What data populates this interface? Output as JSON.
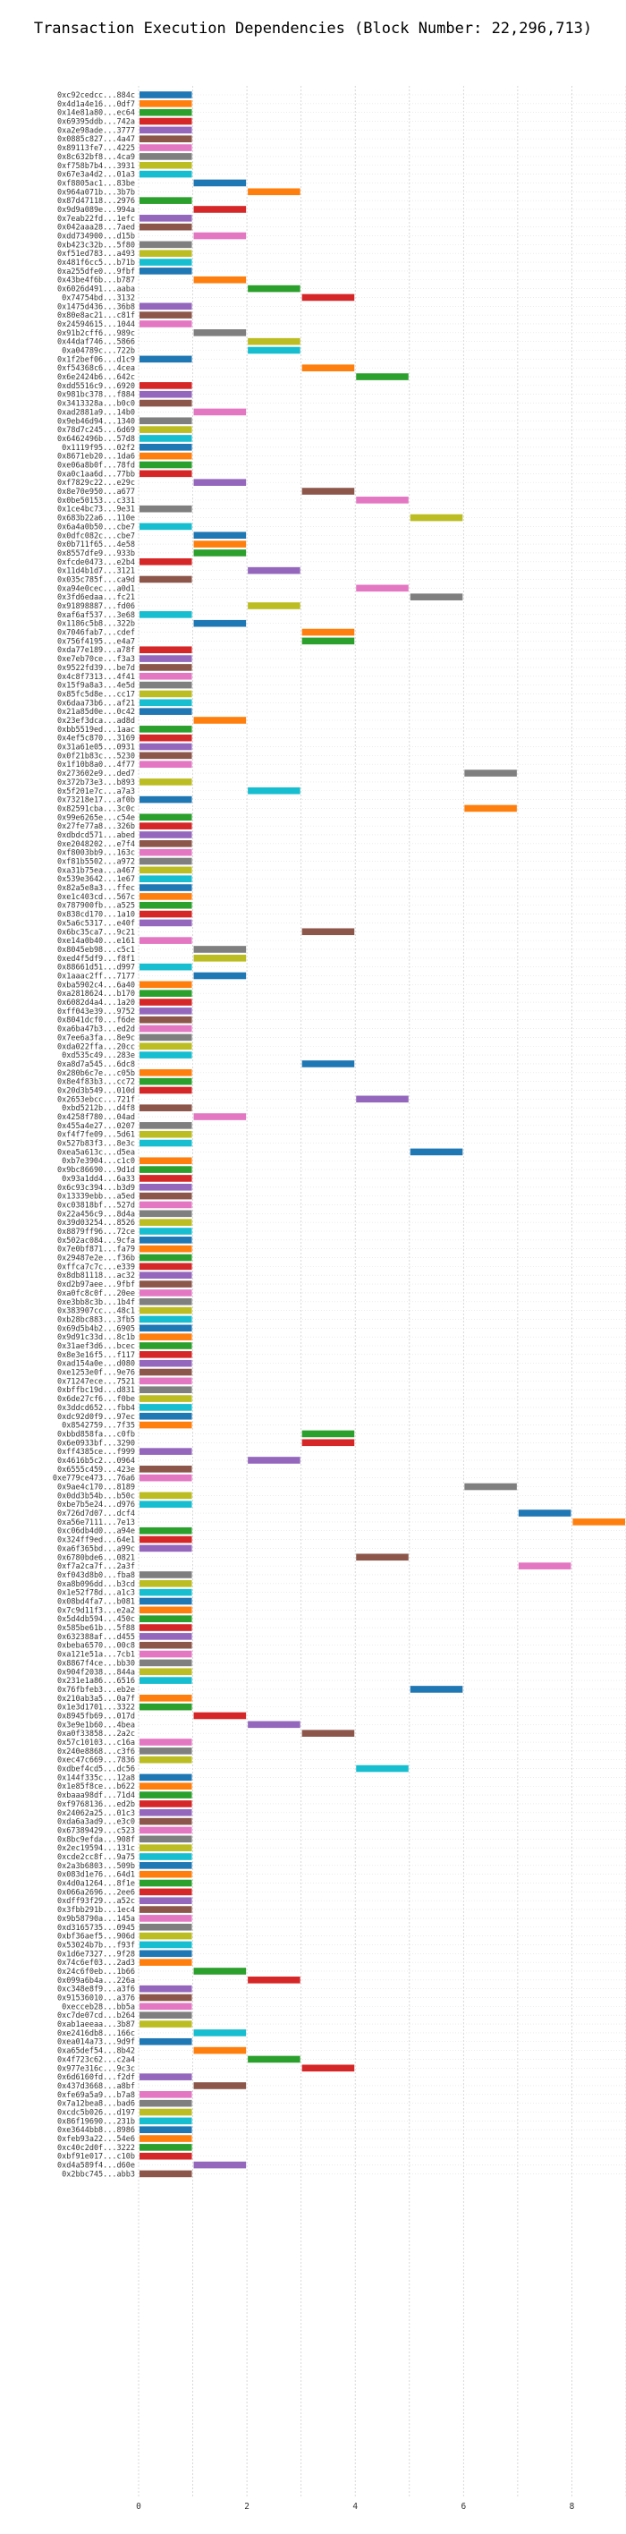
{
  "chart_data": {
    "type": "bar",
    "orientation": "horizontal",
    "title": "Transaction Execution Dependencies (Block Number: 22,296,713)",
    "xlabel": "",
    "ylabel": "",
    "xlim": [
      0,
      9
    ],
    "xticks": [
      0,
      2,
      4,
      6,
      8
    ],
    "grid": "vertical dotted",
    "colors": [
      "#1f77b4",
      "#ff7f0e",
      "#2ca02c",
      "#d62728",
      "#9467bd",
      "#8c564b",
      "#e377c2",
      "#7f7f7f",
      "#bcbd22",
      "#17becf"
    ],
    "transactions": [
      [
        "0xc92cedcc...884c",
        0,
        0
      ],
      [
        "0x4d1a4e16...0df7",
        0,
        1
      ],
      [
        "0x14e81a80...ec64",
        0,
        2
      ],
      [
        "0x69395ddb...742a",
        0,
        3
      ],
      [
        "0xa2e98ade...3777",
        0,
        4
      ],
      [
        "0x0885c827...4a47",
        0,
        5
      ],
      [
        "0x89113fe7...4225",
        0,
        6
      ],
      [
        "0x8c632bf8...4ca9",
        0,
        7
      ],
      [
        "0xf758b7b4...3931",
        0,
        8
      ],
      [
        "0x67e3a4d2...01a3",
        0,
        9
      ],
      [
        "0xf8805ac1...83be",
        1,
        0
      ],
      [
        "0x964a071b...3b7b",
        2,
        1
      ],
      [
        "0x87d47118...2976",
        0,
        2
      ],
      [
        "0x9d9a089e...994a",
        1,
        3
      ],
      [
        "0x7eab22fd...1efc",
        0,
        4
      ],
      [
        "0x042aaa28...7aed",
        0,
        5
      ],
      [
        "0xdd734900...d15b",
        1,
        6
      ],
      [
        "0xb423c32b...5f80",
        0,
        7
      ],
      [
        "0xf51ed783...a493",
        0,
        8
      ],
      [
        "0x481f6cc5...b71b",
        0,
        9
      ],
      [
        "0xa255dfe0...9fbf",
        0,
        0
      ],
      [
        "0x43be4f6b...b787",
        1,
        1
      ],
      [
        "0x6026d491...aaba",
        2,
        2
      ],
      [
        "0x74754bd...3132",
        3,
        3
      ],
      [
        "0x1475d436...36b8",
        0,
        4
      ],
      [
        "0x80e8ac21...c81f",
        0,
        5
      ],
      [
        "0x24594615...1044",
        0,
        6
      ],
      [
        "0x91b2cff6...989c",
        1,
        7
      ],
      [
        "0x44daf746...5866",
        2,
        8
      ],
      [
        "0xa04789c...722b",
        2,
        9
      ],
      [
        "0x1f2bef06...d1c9",
        0,
        0
      ],
      [
        "0xf54368c6...4cea",
        3,
        1
      ],
      [
        "0x6e2424b6...642c",
        4,
        2
      ],
      [
        "0xdd5516c9...6920",
        0,
        3
      ],
      [
        "0x981bc378...f884",
        0,
        4
      ],
      [
        "0x3413328a...b0c0",
        0,
        5
      ],
      [
        "0xad2881a9...14b0",
        1,
        6
      ],
      [
        "0x9eb46d94...1340",
        0,
        7
      ],
      [
        "0x78d7c245...6d69",
        0,
        8
      ],
      [
        "0x6462496b...57d8",
        0,
        9
      ],
      [
        "0x1119f95...02f2",
        0,
        0
      ],
      [
        "0x8671eb20...1da6",
        0,
        1
      ],
      [
        "0xe06a8b0f...78fd",
        0,
        2
      ],
      [
        "0xa0c1aa6d...77bb",
        0,
        3
      ],
      [
        "0xf7829c22...e29c",
        1,
        4
      ],
      [
        "0x8e70e950...a677",
        3,
        5
      ],
      [
        "0x0be50153...c331",
        4,
        6
      ],
      [
        "0x1ce4bc73...9e31",
        0,
        7
      ],
      [
        "0x683b22a6...110e",
        5,
        8
      ],
      [
        "0x6a4a0b50...cbe7",
        0,
        9
      ],
      [
        "0x0dfc082c...cbe7",
        1,
        0
      ],
      [
        "0x0b711f65...4e58",
        1,
        1
      ],
      [
        "0x8557dfe9...933b",
        1,
        2
      ],
      [
        "0xfcde0473...e2b4",
        0,
        3
      ],
      [
        "0x11d4b1d7...3121",
        2,
        4
      ],
      [
        "0x035c785f...ca9d",
        0,
        5
      ],
      [
        "0xa94e0cec...a0d1",
        4,
        6
      ],
      [
        "0x3fd6edaa...fc21",
        5,
        7
      ],
      [
        "0x91898887...fd06",
        2,
        8
      ],
      [
        "0xaf6af537...3e68",
        0,
        9
      ],
      [
        "0x1186c5b8...322b",
        1,
        0
      ],
      [
        "0x7046fab7...cdef",
        3,
        1
      ],
      [
        "0x756f4195...e4a7",
        3,
        2
      ],
      [
        "0xda77e189...a78f",
        0,
        3
      ],
      [
        "0xe7eb70ce...f3a3",
        0,
        4
      ],
      [
        "0x9522fd39...be7d",
        0,
        5
      ],
      [
        "0x4c8f7313...4f41",
        0,
        6
      ],
      [
        "0x15f9a8a3...4e5d",
        0,
        7
      ],
      [
        "0x85fc5d8e...cc17",
        0,
        8
      ],
      [
        "0x6daa73b6...af21",
        0,
        9
      ],
      [
        "0x21a85d0e...0c42",
        0,
        0
      ],
      [
        "0x23ef3dca...ad8d",
        1,
        1
      ],
      [
        "0xbb5519ed...1aac",
        0,
        2
      ],
      [
        "0x4ef5c870...3169",
        0,
        3
      ],
      [
        "0x31a61e05...0931",
        0,
        4
      ],
      [
        "0x0f21b83c...5230",
        0,
        5
      ],
      [
        "0x1f10b8a0...4f77",
        0,
        6
      ],
      [
        "0x273602e9...ded7",
        6,
        7
      ],
      [
        "0x372b73e3...b893",
        0,
        8
      ],
      [
        "0x5f201e7c...a7a3",
        2,
        9
      ],
      [
        "0x73218e17...af0b",
        0,
        0
      ],
      [
        "0x82591cba...3c0c",
        6,
        1
      ],
      [
        "0x99e6265e...c54e",
        0,
        2
      ],
      [
        "0x27fe77a8...326b",
        0,
        3
      ],
      [
        "0xdbdcd571...abed",
        0,
        4
      ],
      [
        "0xe2048202...e7f4",
        0,
        5
      ],
      [
        "0xf8003bb9...163c",
        0,
        6
      ],
      [
        "0xf81b5502...a972",
        0,
        7
      ],
      [
        "0xa31b75ea...a467",
        0,
        8
      ],
      [
        "0x539e3642...1e67",
        0,
        9
      ],
      [
        "0x82a5e8a3...ffec",
        0,
        0
      ],
      [
        "0xe1c403cd...567c",
        0,
        1
      ],
      [
        "0x787900fb...a525",
        0,
        2
      ],
      [
        "0x838cd170...1a10",
        0,
        3
      ],
      [
        "0x5a6c5317...e40f",
        0,
        4
      ],
      [
        "0x6bc35ca7...9c21",
        3,
        5
      ],
      [
        "0xe14a0b40...e161",
        0,
        6
      ],
      [
        "0x8045eb98...c5c1",
        1,
        7
      ],
      [
        "0xed4f5df9...f8f1",
        1,
        8
      ],
      [
        "0x88661d51...d997",
        0,
        9
      ],
      [
        "0x1aaac2ff...7177",
        1,
        0
      ],
      [
        "0xba5902c4...6a40",
        0,
        1
      ],
      [
        "0xa2818624...b170",
        0,
        2
      ],
      [
        "0x6082d4a4...1a20",
        0,
        3
      ],
      [
        "0xff043e39...9752",
        0,
        4
      ],
      [
        "0x8041dcf0...f6de",
        0,
        5
      ],
      [
        "0xa6ba47b3...ed2d",
        0,
        6
      ],
      [
        "0x7ee6a3fa...8e9c",
        0,
        7
      ],
      [
        "0xda022ffa...20cc",
        0,
        8
      ],
      [
        "0xd535c49...283e",
        0,
        9
      ],
      [
        "0xa8d7a545...6dc8",
        3,
        0
      ],
      [
        "0x280b6c7e...c05b",
        0,
        1
      ],
      [
        "0x8e4f83b3...cc72",
        0,
        2
      ],
      [
        "0x20d3b549...010d",
        0,
        3
      ],
      [
        "0x2653ebcc...721f",
        4,
        4
      ],
      [
        "0xbd5212b...d4f8",
        0,
        5
      ],
      [
        "0x4258f780...04ad",
        1,
        6
      ],
      [
        "0x455a4e27...0207",
        0,
        7
      ],
      [
        "0xf4f7fe09...5d61",
        0,
        8
      ],
      [
        "0x527b83f3...8e3c",
        0,
        9
      ],
      [
        "0xea5a613c...d5ea",
        5,
        0
      ],
      [
        "0xb7e3904...c1c0",
        0,
        1
      ],
      [
        "0x9bc86690...9d1d",
        0,
        2
      ],
      [
        "0x93a1dd4...6a33",
        0,
        3
      ],
      [
        "0x6c93c394...b3d9",
        0,
        4
      ],
      [
        "0x13339ebb...a5ed",
        0,
        5
      ],
      [
        "0xc03818bf...527d",
        0,
        6
      ],
      [
        "0x22a456c9...8d4a",
        0,
        7
      ],
      [
        "0x39d03254...8526",
        0,
        8
      ],
      [
        "0x8879ff96...72ce",
        0,
        9
      ],
      [
        "0x502ac084...9cfa",
        0,
        0
      ],
      [
        "0x7e0bf871...fa79",
        0,
        1
      ],
      [
        "0x29487e2e...f36b",
        0,
        2
      ],
      [
        "0xffca7c7c...e339",
        0,
        3
      ],
      [
        "0x8db81118...ac32",
        0,
        4
      ],
      [
        "0xd2b97aee...9fbf",
        0,
        5
      ],
      [
        "0xa0fc8c0f...20ee",
        0,
        6
      ],
      [
        "0xe3bb8c3b...1b4f",
        0,
        7
      ],
      [
        "0x383907cc...48c1",
        0,
        8
      ],
      [
        "0xb28bc883...3fb5",
        0,
        9
      ],
      [
        "0x69d5b4b2...6905",
        0,
        0
      ],
      [
        "0x9d91c33d...8c1b",
        0,
        1
      ],
      [
        "0x31aef3d6...bcec",
        0,
        2
      ],
      [
        "0x8e3e16f5...f117",
        0,
        3
      ],
      [
        "0xad154a0e...d080",
        0,
        4
      ],
      [
        "0xe1253e0f...9e76",
        0,
        5
      ],
      [
        "0x71247ece...7521",
        0,
        6
      ],
      [
        "0xbffbc19d...d831",
        0,
        7
      ],
      [
        "0x6de27cf6...f0be",
        0,
        8
      ],
      [
        "0x3ddcd652...fbb4",
        0,
        9
      ],
      [
        "0xdc92d0f9...97ec",
        0,
        0
      ],
      [
        "0x8542759...7f35",
        0,
        1
      ],
      [
        "0xbbd858fa...c0fb",
        3,
        2
      ],
      [
        "0x6e0933bf...3290",
        3,
        3
      ],
      [
        "0xff4385ce...f999",
        0,
        4
      ],
      [
        "0x4616b5c2...0964",
        2,
        4
      ],
      [
        "0x6555c459...423e",
        0,
        5
      ],
      [
        "0xe779ce473...76a6",
        0,
        6
      ],
      [
        "0x9ae4c170...8189",
        6,
        7
      ],
      [
        "0x0dd3b54b...b50c",
        0,
        8
      ],
      [
        "0xbe7b5e24...d976",
        0,
        9
      ],
      [
        "0x726d7d07...dcf4",
        7,
        0
      ],
      [
        "0xa56e7111...7e13",
        8,
        1
      ],
      [
        "0xc06db4d0...a94e",
        0,
        2
      ],
      [
        "0x324ff9ed...64e1",
        0,
        3
      ],
      [
        "0xa6f365bd...a99c",
        0,
        4
      ],
      [
        "0x6780bde6...0821",
        4,
        5
      ],
      [
        "0xf7a2ca7f...2a3f",
        7,
        6
      ],
      [
        "0xf043d8b0...fba8",
        0,
        7
      ],
      [
        "0xa8b096dd...b3cd",
        0,
        8
      ],
      [
        "0x1e52f78d...a1c3",
        0,
        9
      ],
      [
        "0x08bd4fa7...b081",
        0,
        0
      ],
      [
        "0x7c9d11f3...e2a2",
        0,
        1
      ],
      [
        "0x5d4db594...450c",
        0,
        2
      ],
      [
        "0x585be61b...5f88",
        0,
        3
      ],
      [
        "0x632388af...d455",
        0,
        4
      ],
      [
        "0xbeba6570...00c8",
        0,
        5
      ],
      [
        "0xa121e51a...7cb1",
        0,
        6
      ],
      [
        "0x8867f4ce...bb30",
        0,
        7
      ],
      [
        "0x904f2038...844a",
        0,
        8
      ],
      [
        "0x231e1a86...6516",
        0,
        9
      ],
      [
        "0x76fbfeb3...eb2e",
        5,
        0
      ],
      [
        "0x210ab3a5...0a7f",
        0,
        1
      ],
      [
        "0x1e3d1701...3322",
        0,
        2
      ],
      [
        "0x8945fb69...017d",
        1,
        3
      ],
      [
        "0x3e9e1b60...4bea",
        2,
        4
      ],
      [
        "0xa0f33858...2a2c",
        3,
        5
      ],
      [
        "0x57c10103...c16a",
        0,
        6
      ],
      [
        "0x240e8868...c3f6",
        0,
        7
      ],
      [
        "0xec47c669...7836",
        0,
        8
      ],
      [
        "0xdbef4cd5...dc56",
        4,
        9
      ],
      [
        "0x144f335c...12a8",
        0,
        0
      ],
      [
        "0x1e85f8ce...b622",
        0,
        1
      ],
      [
        "0xbaaa98df...71d4",
        0,
        2
      ],
      [
        "0xf9768136...ed2b",
        0,
        3
      ],
      [
        "0x24062a25...01c3",
        0,
        4
      ],
      [
        "0xda6a3ad9...e3c0",
        0,
        5
      ],
      [
        "0x67389429...c523",
        0,
        6
      ],
      [
        "0x8bc9efda...908f",
        0,
        7
      ],
      [
        "0x2ec19594...131c",
        0,
        8
      ],
      [
        "0xcde2cc8f...9a75",
        0,
        9
      ],
      [
        "0x2a3b6803...509b",
        0,
        0
      ],
      [
        "0x083d1e76...64d1",
        0,
        1
      ],
      [
        "0x4d0a1264...8f1e",
        0,
        2
      ],
      [
        "0x066a2696...2ee6",
        0,
        3
      ],
      [
        "0xdff93f29...a52c",
        0,
        4
      ],
      [
        "0x3fbb291b...1ec4",
        0,
        5
      ],
      [
        "0x9b58790a...145a",
        0,
        6
      ],
      [
        "0xd3165735...0945",
        0,
        7
      ],
      [
        "0xbf36aef5...906d",
        0,
        8
      ],
      [
        "0x53024b7b...f93f",
        0,
        9
      ],
      [
        "0x1d6e7327...9f28",
        0,
        0
      ],
      [
        "0x74c6ef03...2ad3",
        0,
        1
      ],
      [
        "0x24c6f0eb...1b66",
        1,
        2
      ],
      [
        "0x099a6b4a...226a",
        2,
        3
      ],
      [
        "0xc348e8f9...a3f6",
        0,
        4
      ],
      [
        "0x91536010...a376",
        0,
        5
      ],
      [
        "0xecceb28...bb5a",
        0,
        6
      ],
      [
        "0xc7de07cd...b264",
        0,
        7
      ],
      [
        "0xab1aeeaa...3b87",
        0,
        8
      ],
      [
        "0xe2416db8...166c",
        1,
        9
      ],
      [
        "0xea014a73...9d9f",
        0,
        0
      ],
      [
        "0xa65def54...8b42",
        1,
        1
      ],
      [
        "0x4f723c62...c2a4",
        2,
        2
      ],
      [
        "0x977e316c...9c3c",
        3,
        3
      ],
      [
        "0x6d6160fd...f2df",
        0,
        4
      ],
      [
        "0x437d3668...a8bf",
        1,
        5
      ],
      [
        "0xfe69a5a9...b7a8",
        0,
        6
      ],
      [
        "0x7a12bea8...bad6",
        0,
        7
      ],
      [
        "0xcdc5b026...d197",
        0,
        8
      ],
      [
        "0x86f19690...231b",
        0,
        9
      ],
      [
        "0xe3644bb8...8986",
        0,
        0
      ],
      [
        "0xfeb93a22...54e6",
        0,
        1
      ],
      [
        "0xc40c2d0f...3222",
        0,
        2
      ],
      [
        "0xbf91e017...c10b",
        0,
        3
      ],
      [
        "0xd4a589f4...d60e",
        1,
        4
      ],
      [
        "0x2bbc745...abb3",
        0,
        5
      ]
    ]
  }
}
